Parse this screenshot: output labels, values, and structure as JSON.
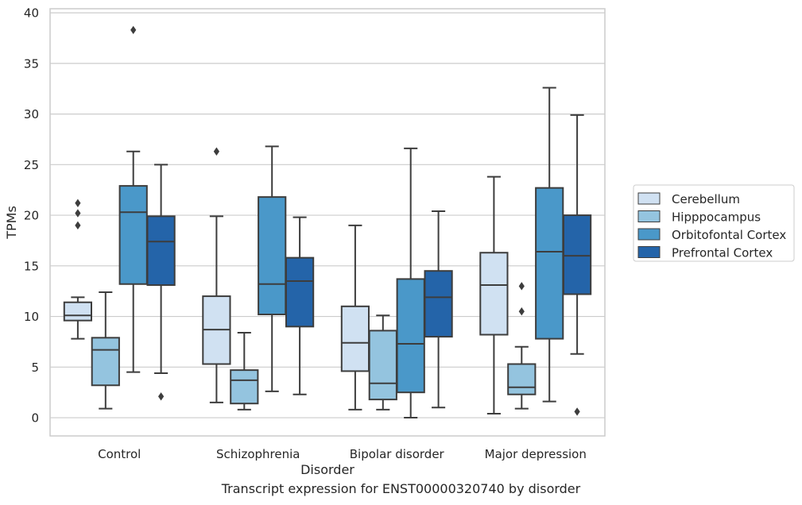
{
  "caption": "Transcript expression for ENST00000320740 by disorder",
  "chart_data": {
    "type": "box",
    "xlabel": "Disorder",
    "ylabel": "TPMs",
    "ylim": [
      -1.8,
      40.4
    ],
    "yticks": [
      0,
      5,
      10,
      15,
      20,
      25,
      30,
      35,
      40
    ],
    "grid": true,
    "legend_position": "right",
    "categories": [
      "Control",
      "Schizophrenia",
      "Bipolar disorder",
      "Major depression"
    ],
    "series": [
      {
        "name": "Cerebellum",
        "color": "#d0e1f2",
        "boxes": [
          {
            "whislo": 7.8,
            "q1": 9.6,
            "med": 10.1,
            "q3": 11.4,
            "whishi": 11.9,
            "fliers": [
              19.0,
              20.2,
              21.2
            ]
          },
          {
            "whislo": 1.5,
            "q1": 5.3,
            "med": 8.7,
            "q3": 12.0,
            "whishi": 19.9,
            "fliers": [
              26.3
            ]
          },
          {
            "whislo": 0.8,
            "q1": 4.6,
            "med": 7.4,
            "q3": 11.0,
            "whishi": 19.0,
            "fliers": []
          },
          {
            "whislo": 0.4,
            "q1": 8.2,
            "med": 13.1,
            "q3": 16.3,
            "whishi": 23.8,
            "fliers": []
          }
        ]
      },
      {
        "name": "Hipppocampus",
        "color": "#94c4df",
        "boxes": [
          {
            "whislo": 0.9,
            "q1": 3.2,
            "med": 6.7,
            "q3": 7.9,
            "whishi": 12.4,
            "fliers": []
          },
          {
            "whislo": 0.8,
            "q1": 1.4,
            "med": 3.7,
            "q3": 4.7,
            "whishi": 8.4,
            "fliers": []
          },
          {
            "whislo": 0.8,
            "q1": 1.8,
            "med": 3.4,
            "q3": 8.6,
            "whishi": 10.1,
            "fliers": []
          },
          {
            "whislo": 0.9,
            "q1": 2.3,
            "med": 3.0,
            "q3": 5.3,
            "whishi": 7.0,
            "fliers": [
              10.5,
              13.0
            ]
          }
        ]
      },
      {
        "name": "Orbitofontal Cortex",
        "color": "#4a98c9",
        "boxes": [
          {
            "whislo": 4.5,
            "q1": 13.2,
            "med": 20.3,
            "q3": 22.9,
            "whishi": 26.3,
            "fliers": [
              38.3
            ]
          },
          {
            "whislo": 2.6,
            "q1": 10.2,
            "med": 13.2,
            "q3": 21.8,
            "whishi": 26.8,
            "fliers": []
          },
          {
            "whislo": 0.0,
            "q1": 2.5,
            "med": 7.3,
            "q3": 13.7,
            "whishi": 26.6,
            "fliers": []
          },
          {
            "whislo": 1.6,
            "q1": 7.8,
            "med": 16.4,
            "q3": 22.7,
            "whishi": 32.6,
            "fliers": []
          }
        ]
      },
      {
        "name": "Prefrontal Cortex",
        "color": "#2464a9",
        "boxes": [
          {
            "whislo": 4.4,
            "q1": 13.1,
            "med": 17.4,
            "q3": 19.9,
            "whishi": 25.0,
            "fliers": [
              2.1
            ]
          },
          {
            "whislo": 2.3,
            "q1": 9.0,
            "med": 13.5,
            "q3": 15.8,
            "whishi": 19.8,
            "fliers": []
          },
          {
            "whislo": 1.0,
            "q1": 8.0,
            "med": 11.9,
            "q3": 14.5,
            "whishi": 20.4,
            "fliers": []
          },
          {
            "whislo": 6.3,
            "q1": 12.2,
            "med": 16.0,
            "q3": 20.0,
            "whishi": 29.9,
            "fliers": [
              0.6
            ]
          }
        ]
      }
    ]
  }
}
